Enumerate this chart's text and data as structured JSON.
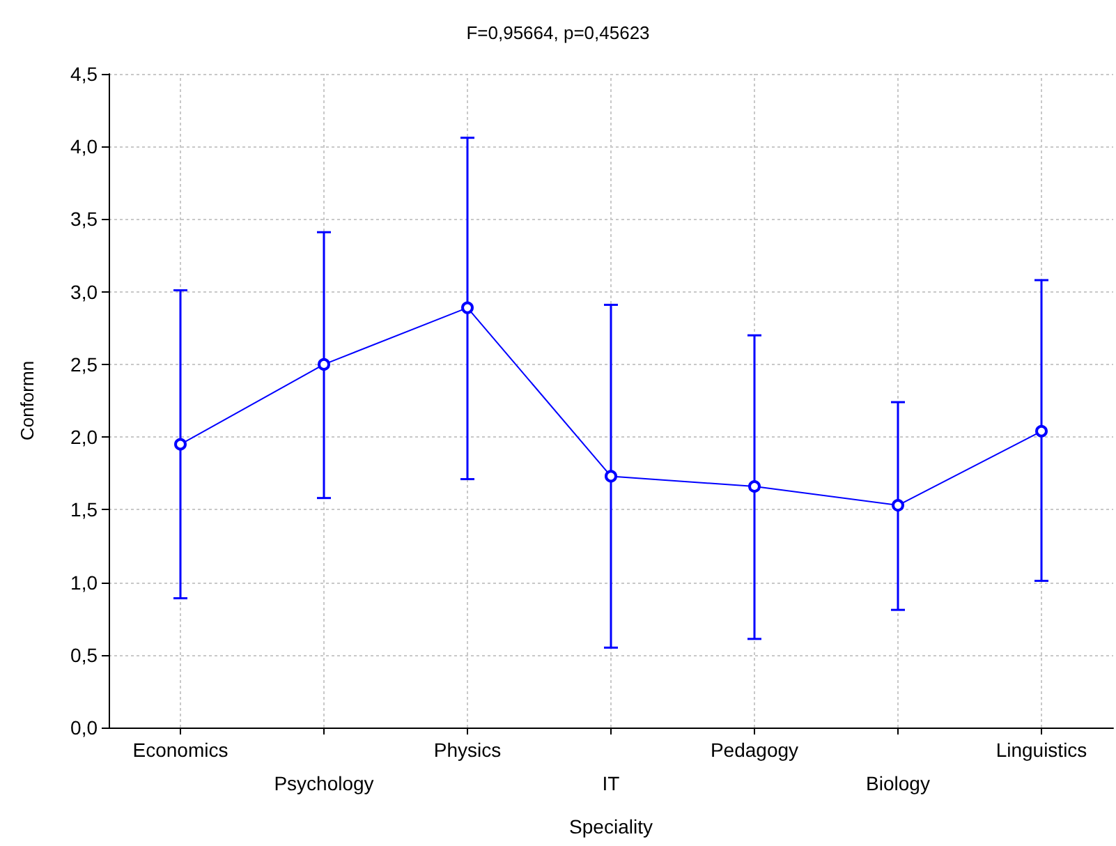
{
  "chart_data": {
    "type": "line",
    "title": "F=0,95664, p=0,45623",
    "xlabel": "Speciality",
    "ylabel": "Conformn",
    "categories": [
      "Economics",
      "Psychology",
      "Physics",
      "IT",
      "Pedagogy",
      "Biology",
      "Linguistics"
    ],
    "series": [
      {
        "color": "#0000ff",
        "values": [
          1.95,
          2.5,
          2.89,
          1.73,
          1.66,
          1.53,
          2.04
        ],
        "errors": [
          [
            0.89,
            3.01
          ],
          [
            1.58,
            3.41
          ],
          [
            1.71,
            4.06
          ],
          [
            0.55,
            2.91
          ],
          [
            0.61,
            2.7
          ],
          [
            0.81,
            2.24
          ],
          [
            1.01,
            3.08
          ]
        ]
      }
    ],
    "ylim": [
      0,
      4.5
    ],
    "yticks": [
      {
        "value": 0,
        "label": "0,0"
      },
      {
        "value": 0.5,
        "label": "0,5"
      },
      {
        "value": 1,
        "label": "1,0"
      },
      {
        "value": 1.5,
        "label": "1,5"
      },
      {
        "value": 2,
        "label": "2,0"
      },
      {
        "value": 2.5,
        "label": "2,5"
      },
      {
        "value": 3,
        "label": "3,0"
      },
      {
        "value": 3.5,
        "label": "3,5"
      },
      {
        "value": 4,
        "label": "4,0"
      },
      {
        "value": 4.5,
        "label": "4,5"
      }
    ],
    "grid": true,
    "marker": "circle",
    "line_style": "solid"
  }
}
